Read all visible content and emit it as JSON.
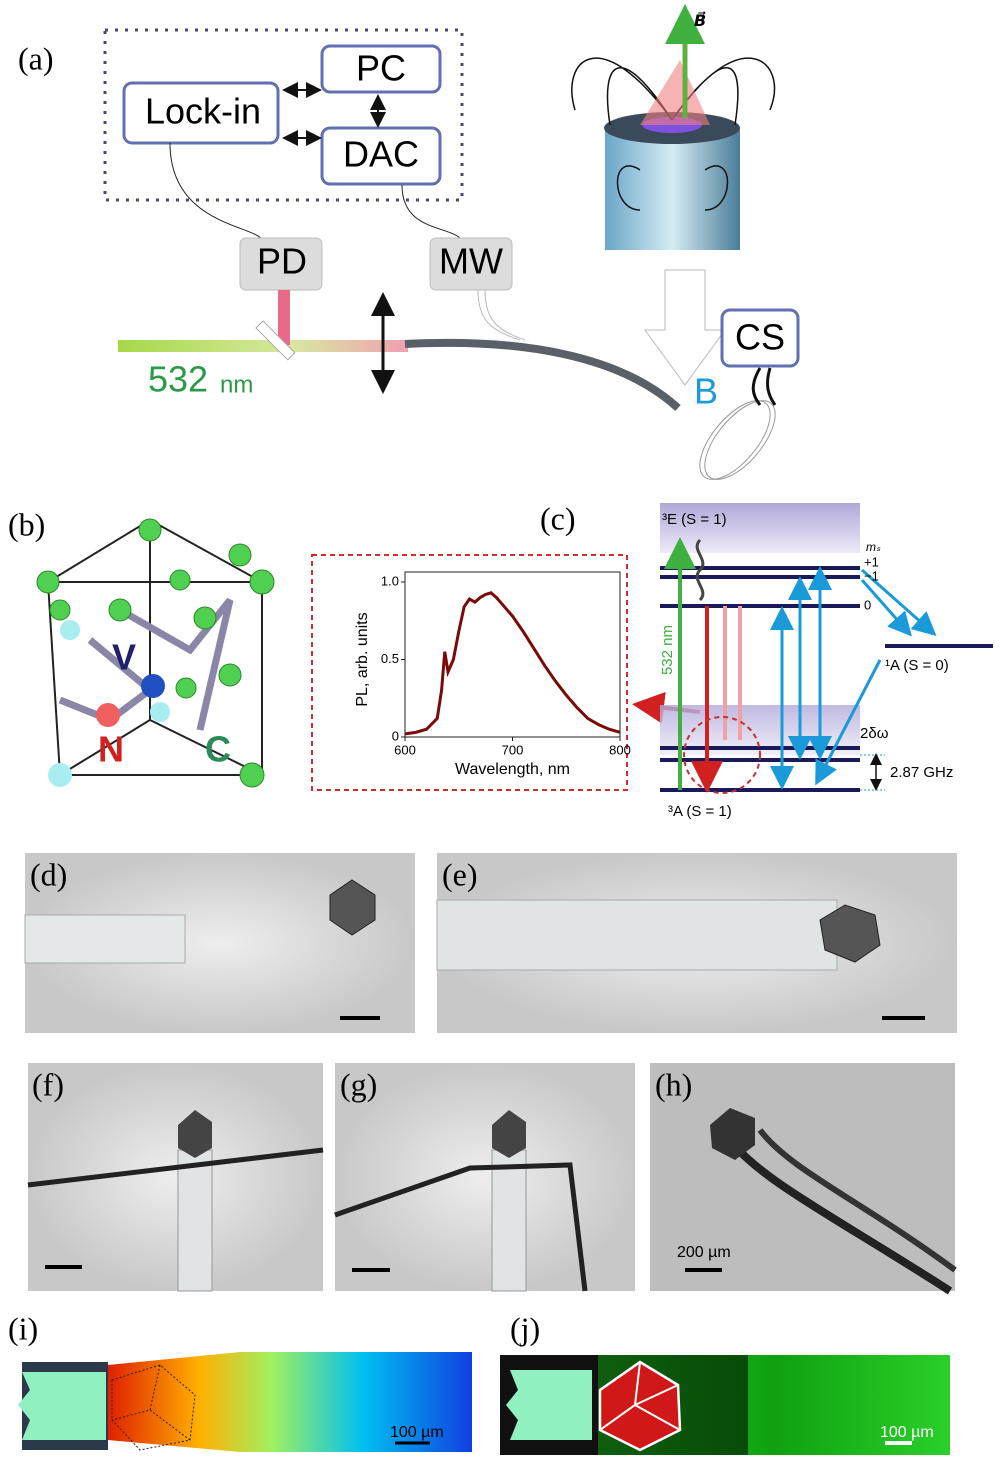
{
  "figure": {
    "panel_labels": [
      "(a)",
      "(b)",
      "(c)",
      "(d)",
      "(e)",
      "(f)",
      "(g)",
      "(h)",
      "(i)",
      "(j)"
    ],
    "setup": {
      "lock_in": "Lock-in",
      "pc": "PC",
      "dac": "DAC",
      "pd": "PD",
      "mw": "MW",
      "wavelength": "532",
      "wavelength_unit": "nm",
      "cs": "CS",
      "field": "B",
      "field_vector": "B⃗"
    },
    "crystal": {
      "vacancy": "V",
      "nitrogen": "N",
      "carbon": "C"
    },
    "levels": {
      "excited": "³E (S = 1)",
      "ms": "mₛ",
      "plus_one": "+1",
      "minus_one": "−1",
      "zero": "0",
      "singlet": "¹A (S = 0)",
      "pump": "532 nm",
      "splitting": "2δω",
      "zfs": "2.87 GHz",
      "ground": "³A (S = 1)"
    },
    "scale_bars": [
      "200 µm",
      "100 µm",
      "100 µm"
    ]
  },
  "chart_data": {
    "type": "line",
    "xlabel": "Wavelength, nm",
    "ylabel": "PL, arb. units",
    "x": [
      600,
      610,
      620,
      630,
      634,
      637,
      640,
      645,
      650,
      655,
      660,
      665,
      670,
      675,
      680,
      685,
      690,
      700,
      710,
      720,
      730,
      740,
      750,
      760,
      770,
      780,
      790,
      800
    ],
    "values": [
      0.02,
      0.03,
      0.05,
      0.12,
      0.3,
      0.55,
      0.42,
      0.5,
      0.68,
      0.84,
      0.89,
      0.87,
      0.9,
      0.92,
      0.93,
      0.9,
      0.86,
      0.78,
      0.68,
      0.57,
      0.46,
      0.36,
      0.27,
      0.19,
      0.12,
      0.08,
      0.05,
      0.03
    ],
    "color": "#7a0a0a",
    "xlim": [
      600,
      800
    ],
    "xticks": [
      600,
      700,
      800
    ],
    "ylim": [
      0,
      1
    ],
    "yticks": [
      0,
      0.5,
      {
        "value": 1,
        "label": "1.0"
      }
    ]
  }
}
